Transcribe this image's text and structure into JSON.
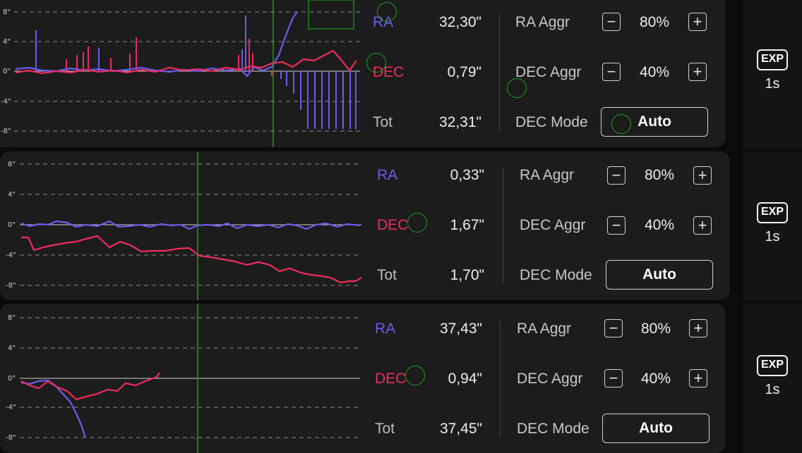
{
  "colors": {
    "ra": "#6a5cf0",
    "dec": "#ee2c5c",
    "cursor": "#1ba11b",
    "grid": "#8a8a8a"
  },
  "panels": [
    {
      "y_ticks": [
        "8\"",
        "4\"",
        "0\"",
        "-4\"",
        "-8\""
      ],
      "stats": {
        "ra_label": "RA",
        "ra_value": "32,30\"",
        "dec_label": "DEC",
        "dec_value": "0,79\"",
        "tot_label": "Tot",
        "tot_value": "32,31\""
      },
      "controls": {
        "ra_aggr_label": "RA Aggr",
        "ra_aggr_value": "80%",
        "dec_aggr_label": "DEC Aggr",
        "dec_aggr_value": "40%",
        "dec_mode_label": "DEC Mode",
        "dec_mode_value": "Auto",
        "minus_icon": "minus-icon",
        "plus_icon": "plus-icon"
      },
      "exp": {
        "badge": "EXP",
        "time": "1s"
      }
    },
    {
      "y_ticks": [
        "8\"",
        "4\"",
        "0\"",
        "-4\"",
        "-8\""
      ],
      "stats": {
        "ra_label": "RA",
        "ra_value": "0,33\"",
        "dec_label": "DEC",
        "dec_value": "1,67\"",
        "tot_label": "Tot",
        "tot_value": "1,70\""
      },
      "controls": {
        "ra_aggr_label": "RA Aggr",
        "ra_aggr_value": "80%",
        "dec_aggr_label": "DEC Aggr",
        "dec_aggr_value": "40%",
        "dec_mode_label": "DEC Mode",
        "dec_mode_value": "Auto",
        "minus_icon": "minus-icon",
        "plus_icon": "plus-icon"
      },
      "exp": {
        "badge": "EXP",
        "time": "1s"
      }
    },
    {
      "y_ticks": [
        "8\"",
        "4\"",
        "0\"",
        "-4\"",
        "-8\""
      ],
      "stats": {
        "ra_label": "RA",
        "ra_value": "37,43\"",
        "dec_label": "DEC",
        "dec_value": "0,94\"",
        "tot_label": "Tot",
        "tot_value": "37,45\""
      },
      "controls": {
        "ra_aggr_label": "RA Aggr",
        "ra_aggr_value": "80%",
        "dec_aggr_label": "DEC Aggr",
        "dec_aggr_value": "40%",
        "dec_mode_label": "DEC Mode",
        "dec_mode_value": "Auto",
        "minus_icon": "minus-icon",
        "plus_icon": "plus-icon"
      },
      "exp": {
        "badge": "EXP",
        "time": "1s"
      }
    }
  ]
}
